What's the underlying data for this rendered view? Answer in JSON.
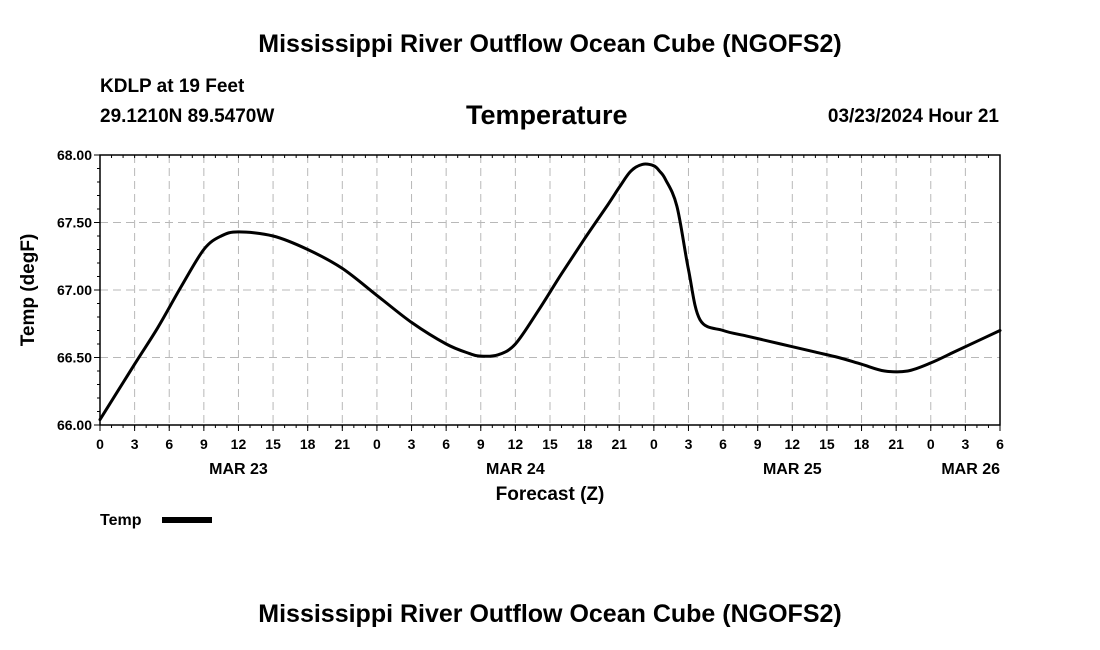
{
  "page": {
    "title_top": "Mississippi River Outflow Ocean Cube (NGOFS2)",
    "title_bottom": "Mississippi River Outflow Ocean Cube (NGOFS2)",
    "station": "KDLP at 19 Feet",
    "coords": "29.1210N  89.5470W",
    "variable": "Temperature",
    "datetime": "03/23/2024 Hour 21"
  },
  "legend": {
    "label": "Temp"
  },
  "colors": {
    "line": "#000000",
    "grid": "#b8b8b8",
    "background": "#ffffff"
  },
  "chart_data": {
    "type": "line",
    "title": "Temperature",
    "xlabel": "Forecast (Z)",
    "ylabel": "Temp (degF)",
    "xlim": [
      0,
      78
    ],
    "ylim": [
      66.0,
      68.0
    ],
    "yticks": [
      "66.00",
      "66.50",
      "67.00",
      "67.50",
      "68.00"
    ],
    "xtick_labels": [
      "0",
      "3",
      "6",
      "9",
      "12",
      "15",
      "18",
      "21",
      "0",
      "3",
      "6",
      "9",
      "12",
      "15",
      "18",
      "21",
      "0",
      "3",
      "6",
      "9",
      "12",
      "15",
      "18",
      "21",
      "0",
      "3",
      "6"
    ],
    "day_labels": [
      {
        "label": "MAR 23",
        "hour": 12
      },
      {
        "label": "MAR 24",
        "hour": 36
      },
      {
        "label": "MAR 25",
        "hour": 60
      },
      {
        "label": "MAR 26",
        "hour": 78
      }
    ],
    "series": [
      {
        "name": "Temp",
        "x": [
          0,
          3,
          5,
          7,
          9,
          10.5,
          12,
          15,
          18,
          21,
          24,
          27,
          30,
          32,
          33,
          34.5,
          36,
          38,
          40,
          42,
          44,
          45,
          46,
          47,
          48,
          48.5,
          49,
          50,
          51,
          52,
          54,
          56,
          58,
          60,
          62,
          64,
          66,
          68,
          70,
          72,
          74,
          76,
          78
        ],
        "values": [
          66.04,
          66.45,
          66.72,
          67.02,
          67.3,
          67.4,
          67.43,
          67.4,
          67.3,
          67.16,
          66.96,
          66.76,
          66.6,
          66.53,
          66.51,
          66.52,
          66.6,
          66.85,
          67.12,
          67.38,
          67.63,
          67.76,
          67.88,
          67.93,
          67.92,
          67.88,
          67.82,
          67.62,
          67.15,
          66.78,
          66.7,
          66.66,
          66.62,
          66.58,
          66.54,
          66.5,
          66.45,
          66.4,
          66.4,
          66.46,
          66.54,
          66.62,
          66.7
        ]
      }
    ]
  }
}
